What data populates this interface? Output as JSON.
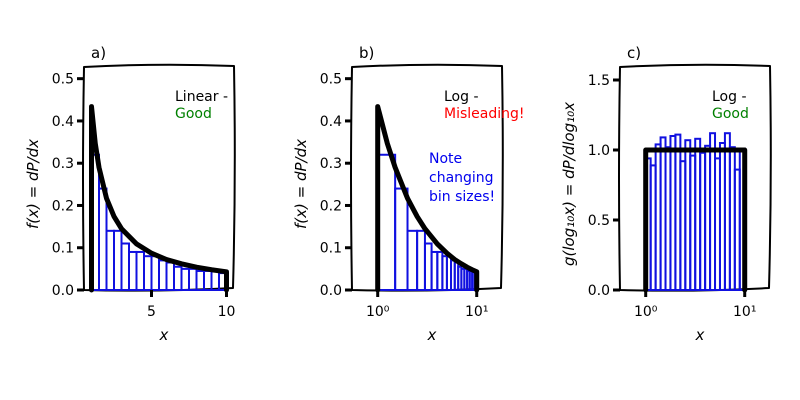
{
  "chart_data": [
    {
      "type": "bar",
      "panel_label": "a)",
      "xscale": "linear",
      "xlim": [
        0.5,
        10.5
      ],
      "ylim": [
        0,
        0.53
      ],
      "xticks": [
        {
          "value": 5,
          "label": "5"
        },
        {
          "value": 10,
          "label": "10"
        }
      ],
      "yticks": [
        {
          "value": 0,
          "label": "0.0"
        },
        {
          "value": 0.1,
          "label": "0.1"
        },
        {
          "value": 0.2,
          "label": "0.2"
        },
        {
          "value": 0.3,
          "label": "0.3"
        },
        {
          "value": 0.4,
          "label": "0.4"
        },
        {
          "value": 0.5,
          "label": "0.5"
        }
      ],
      "xlabel": "x",
      "ylabel": "f(x) = dP/dx",
      "annotation": [
        {
          "text": "Linear -",
          "color": "#000000"
        },
        {
          "text": "Good",
          "color": "#008000"
        }
      ],
      "histogram": {
        "edges": [
          1,
          1.5,
          2,
          2.5,
          3,
          3.5,
          4,
          4.5,
          5,
          5.5,
          6,
          6.5,
          7,
          7.5,
          8,
          8.5,
          9,
          9.5,
          10
        ],
        "heights": [
          0.32,
          0.24,
          0.14,
          0.14,
          0.11,
          0.09,
          0.09,
          0.08,
          0.08,
          0.07,
          0.065,
          0.055,
          0.05,
          0.05,
          0.045,
          0.045,
          0.045,
          0.04
        ]
      },
      "curve": {
        "x": [
          1,
          1.25,
          1.5,
          2,
          2.5,
          3,
          4,
          5,
          6,
          7,
          8,
          9,
          10
        ],
        "y": [
          0.434,
          0.347,
          0.29,
          0.217,
          0.174,
          0.145,
          0.109,
          0.087,
          0.072,
          0.062,
          0.054,
          0.048,
          0.043
        ]
      },
      "colors": {
        "bars": "#1010e0",
        "curve": "#000000"
      }
    },
    {
      "type": "bar",
      "panel_label": "b)",
      "xscale": "log",
      "xlim": [
        0.55,
        18
      ],
      "ylim": [
        0,
        0.53
      ],
      "xticks": [
        {
          "value": 1,
          "label": "10⁰"
        },
        {
          "value": 10,
          "label": "10¹"
        }
      ],
      "yticks": [
        {
          "value": 0,
          "label": "0.0"
        },
        {
          "value": 0.1,
          "label": "0.1"
        },
        {
          "value": 0.2,
          "label": "0.2"
        },
        {
          "value": 0.3,
          "label": "0.3"
        },
        {
          "value": 0.4,
          "label": "0.4"
        },
        {
          "value": 0.5,
          "label": "0.5"
        }
      ],
      "xlabel": "x",
      "ylabel": "f(x) = dP/dx",
      "annotation": [
        {
          "text": "Log -",
          "color": "#000000"
        },
        {
          "text": "Misleading!",
          "color": "#ff0000"
        }
      ],
      "note": {
        "lines": [
          "Note",
          "changing",
          "bin sizes!"
        ],
        "color": "#0000ee"
      },
      "histogram": {
        "edges": [
          1,
          1.5,
          2,
          2.5,
          3,
          3.5,
          4,
          4.5,
          5,
          5.5,
          6,
          6.5,
          7,
          7.5,
          8,
          8.5,
          9,
          9.5,
          10
        ],
        "heights": [
          0.32,
          0.24,
          0.14,
          0.14,
          0.11,
          0.09,
          0.09,
          0.08,
          0.08,
          0.07,
          0.065,
          0.055,
          0.05,
          0.05,
          0.045,
          0.045,
          0.045,
          0.04
        ]
      },
      "curve": {
        "x": [
          1,
          1.25,
          1.5,
          2,
          2.5,
          3,
          4,
          5,
          6,
          7,
          8,
          9,
          10
        ],
        "y": [
          0.434,
          0.347,
          0.29,
          0.217,
          0.174,
          0.145,
          0.109,
          0.087,
          0.072,
          0.062,
          0.054,
          0.048,
          0.043
        ]
      },
      "colors": {
        "bars": "#1010e0",
        "curve": "#000000"
      }
    },
    {
      "type": "bar",
      "panel_label": "c)",
      "xscale": "log",
      "xlim": [
        0.55,
        18
      ],
      "ylim": [
        0,
        1.6
      ],
      "xticks": [
        {
          "value": 1,
          "label": "10⁰"
        },
        {
          "value": 10,
          "label": "10¹"
        }
      ],
      "yticks": [
        {
          "value": 0,
          "label": "0.0"
        },
        {
          "value": 0.5,
          "label": "0.5"
        },
        {
          "value": 1.0,
          "label": "1.0"
        },
        {
          "value": 1.5,
          "label": "1.5"
        }
      ],
      "xlabel": "x",
      "ylabel": "g(log₁₀x) = dP/dlog₁₀x",
      "annotation": [
        {
          "text": "Log -",
          "color": "#000000"
        },
        {
          "text": "Good",
          "color": "#008000"
        }
      ],
      "histogram": {
        "edges": [
          1,
          1.122,
          1.259,
          1.413,
          1.585,
          1.778,
          1.995,
          2.239,
          2.512,
          2.818,
          3.162,
          3.548,
          3.981,
          4.467,
          5.012,
          5.623,
          6.31,
          7.079,
          7.943,
          8.913,
          10
        ],
        "heights": [
          0.94,
          0.89,
          1.04,
          1.09,
          1.02,
          1.1,
          1.11,
          0.92,
          1.07,
          0.96,
          1.08,
          0.98,
          1.03,
          1.12,
          0.94,
          1.05,
          1.12,
          1.02,
          0.86,
          1.01
        ]
      },
      "curve": {
        "x": [
          1,
          10
        ],
        "y": [
          1.0,
          1.0
        ]
      },
      "colors": {
        "bars": "#1010e0",
        "curve": "#000000"
      }
    }
  ]
}
